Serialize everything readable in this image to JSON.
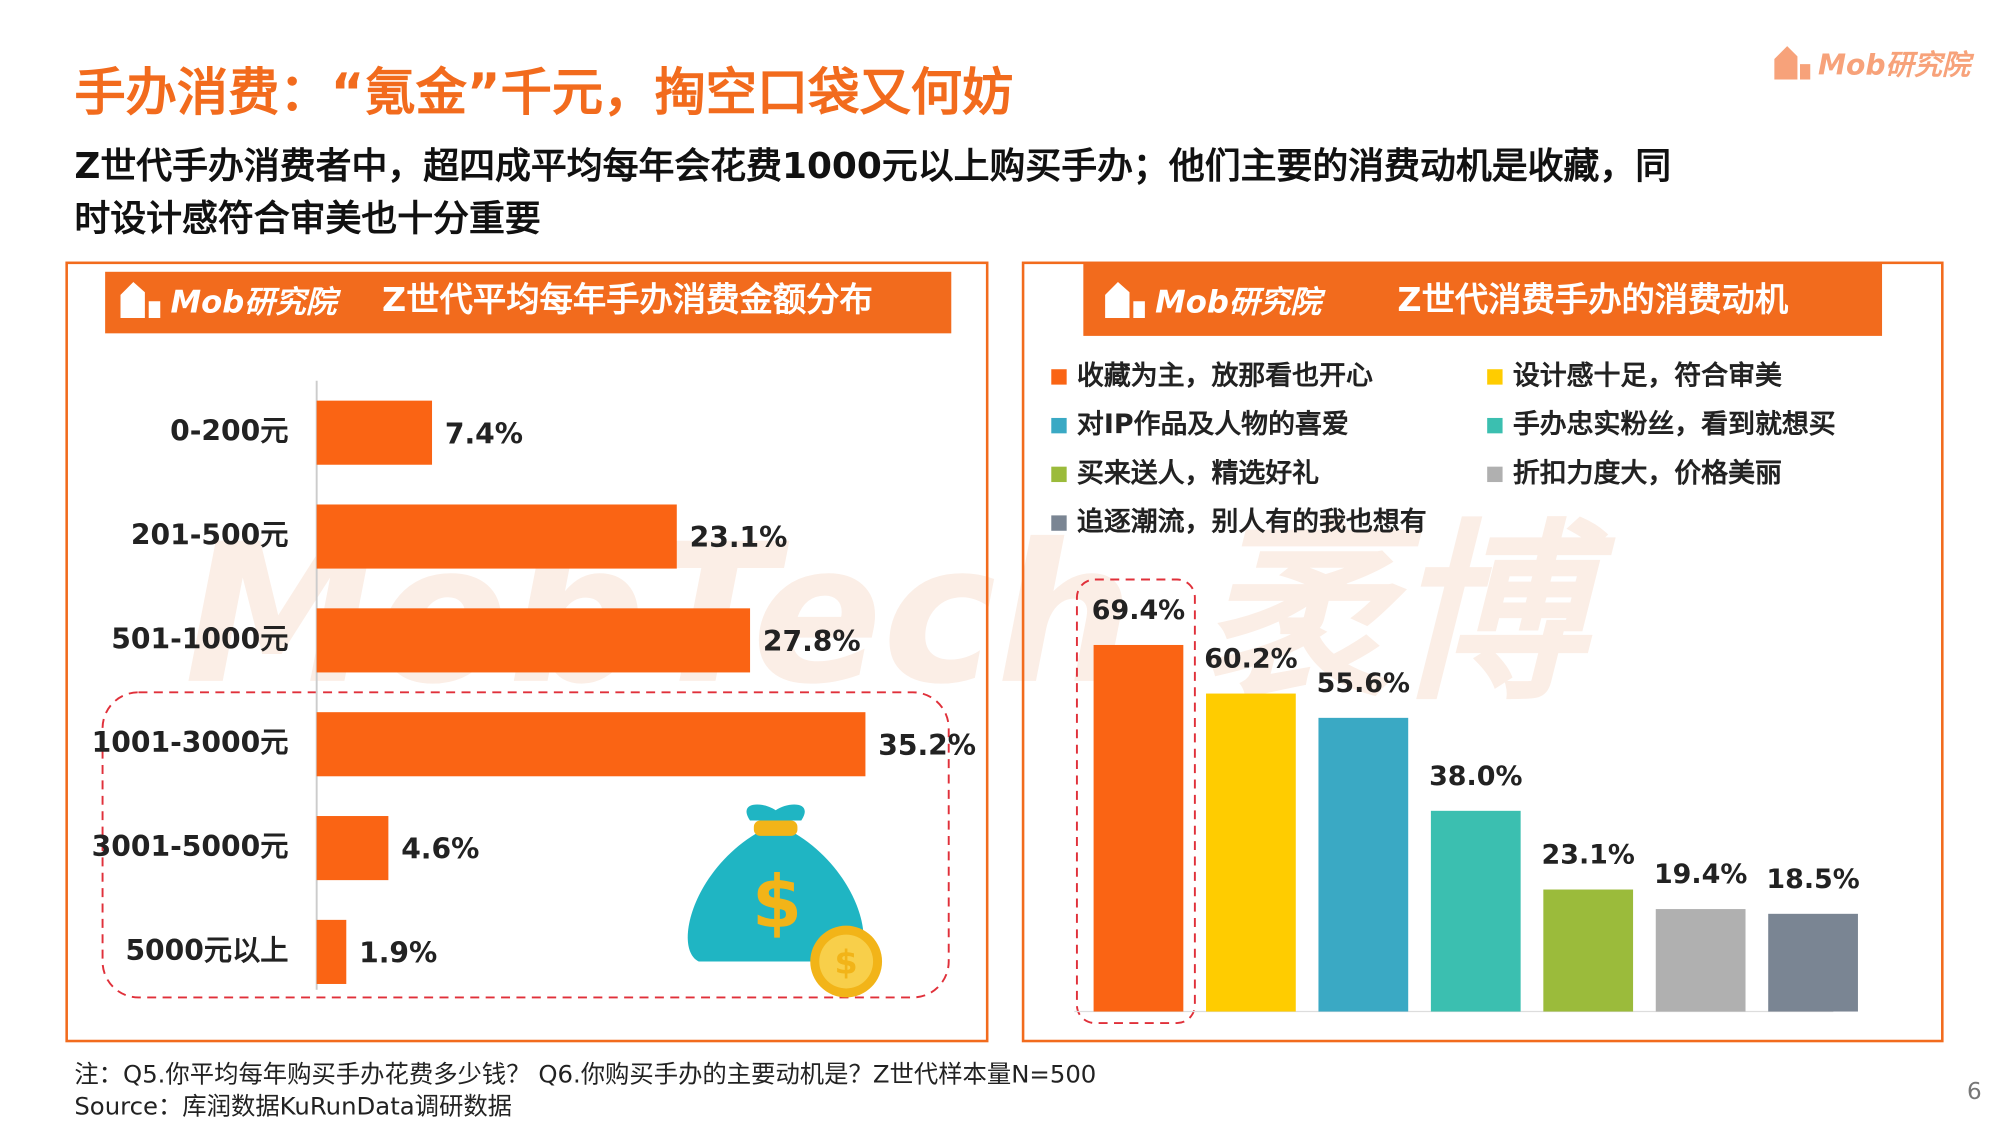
{
  "header": {
    "title": "手办消费：“氪金”千元，掏空口袋又何妨",
    "subtitle_lines": [
      "Z世代手办消费者中，超四成平均每年会花费1000元以上购买手办；他们主要的消费动机是收藏，同",
      "时设计感符合审美也十分重要"
    ],
    "brand": "Mob研究院",
    "watermark": "MobTech 袤博"
  },
  "chart_data": [
    {
      "type": "bar",
      "orientation": "horizontal",
      "title": "Z世代平均每年手办消费金额分布",
      "categories": [
        "0-200元",
        "201-500元",
        "501-1000元",
        "1001-3000元",
        "3001-5000元",
        "5000元以上"
      ],
      "values": [
        7.4,
        23.1,
        27.8,
        35.2,
        4.6,
        1.9
      ],
      "value_labels": [
        "7.4%",
        "23.1%",
        "27.8%",
        "35.2%",
        "4.6%",
        "1.9%"
      ],
      "color": "#fa6414"
    },
    {
      "type": "bar",
      "orientation": "vertical",
      "title": "Z世代消费手办的消费动机",
      "series": [
        {
          "name": "收藏为主，放那看也开心",
          "color": "#fa6414",
          "values": [
            69.4
          ],
          "value_labels": [
            "69.4%"
          ]
        },
        {
          "name": "设计感十足，符合审美",
          "color": "#ffcc00",
          "values": [
            60.2
          ],
          "value_labels": [
            "60.2%"
          ]
        },
        {
          "name": "对IP作品及人物的喜爱",
          "color": "#3aa9c4",
          "values": [
            55.6
          ],
          "value_labels": [
            "55.6%"
          ]
        },
        {
          "name": "手办忠实粉丝，看到就想买",
          "color": "#3bbfb0",
          "values": [
            38.0
          ],
          "value_labels": [
            "38.0%"
          ]
        },
        {
          "name": "买来送人，精选好礼",
          "color": "#9bbb3b",
          "values": [
            23.1
          ],
          "value_labels": [
            "23.1%"
          ]
        },
        {
          "name": "折扣力度大，价格美丽",
          "color": "#b0b0b0",
          "values": [
            19.4
          ],
          "value_labels": [
            "19.4%"
          ]
        },
        {
          "name": "追逐潮流，别人有的我也想有",
          "color": "#7a8593",
          "values": [
            18.5
          ],
          "value_labels": [
            "18.5%"
          ]
        }
      ]
    }
  ],
  "footer": {
    "note": "注：Q5.你平均每年购买手办花费多少钱？  Q6.你购买手办的主要动机是？Z世代样本量N=500",
    "source": "Source：库润数据KuRunData调研数据",
    "page": "6"
  }
}
